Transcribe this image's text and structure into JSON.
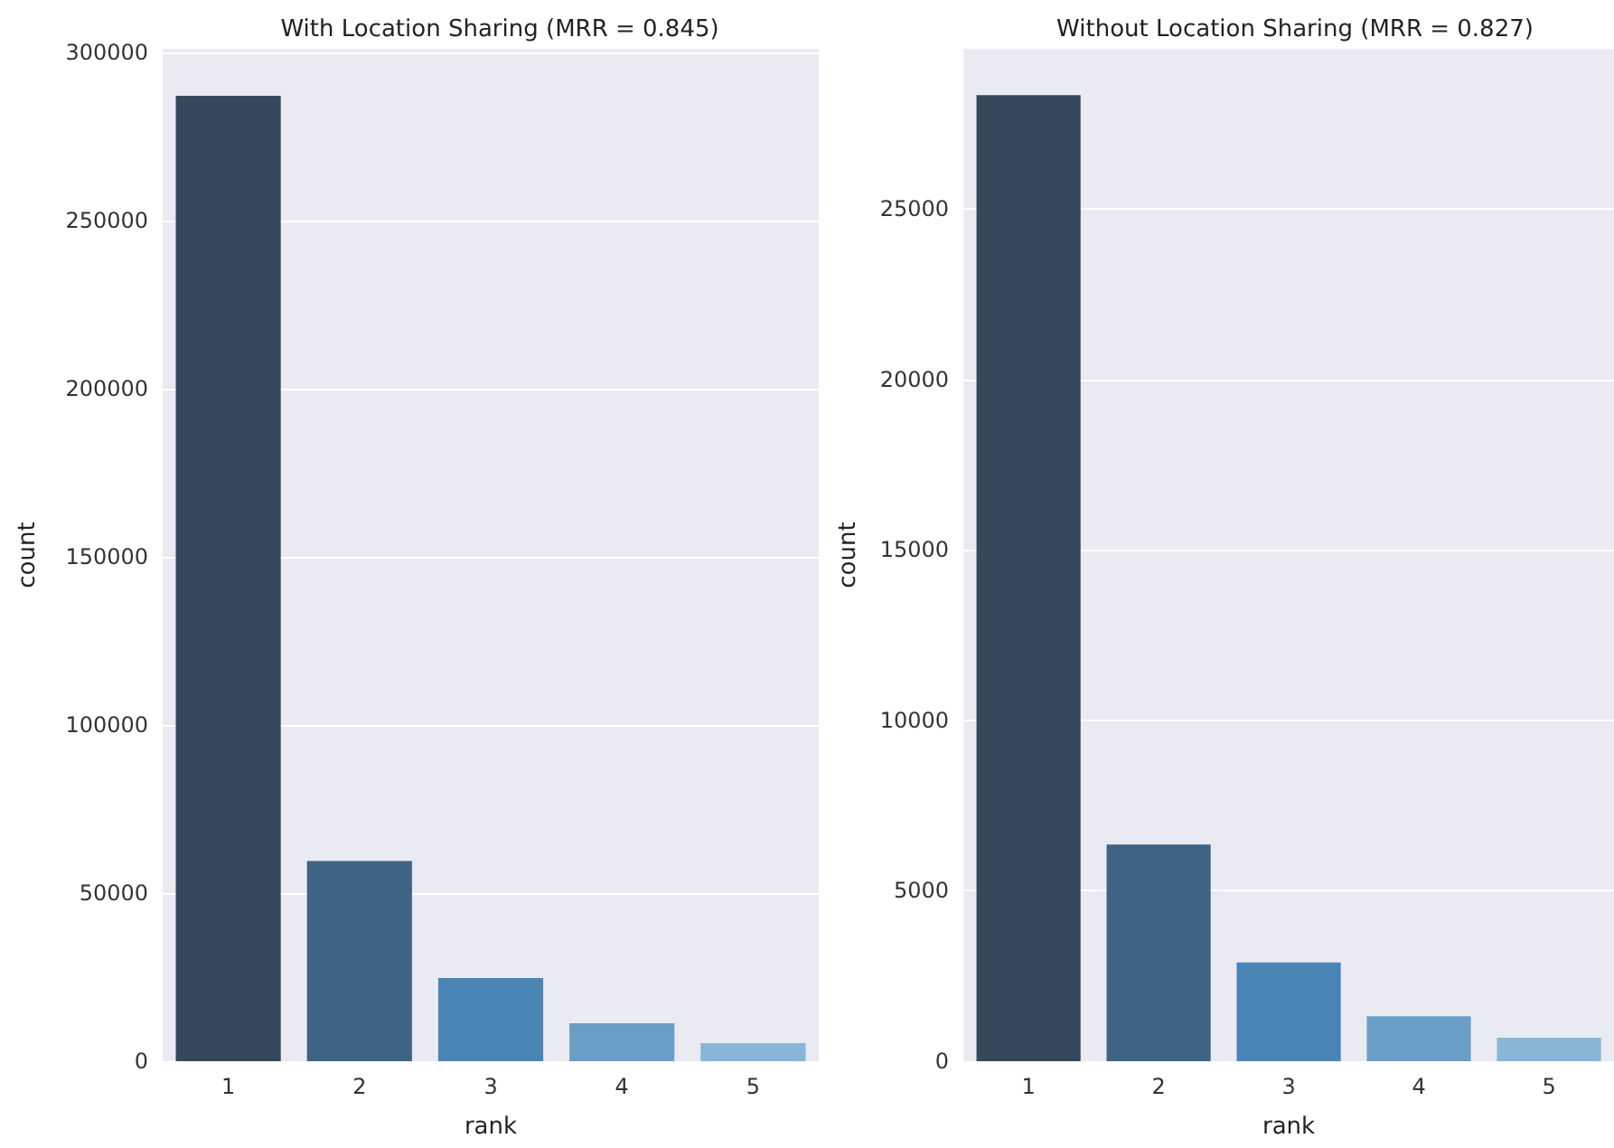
{
  "chart_data": [
    {
      "type": "bar",
      "title": "With Location Sharing (MRR = 0.845)",
      "xlabel": "rank",
      "ylabel": "count",
      "categories": [
        "1",
        "2",
        "3",
        "4",
        "5"
      ],
      "values": [
        287000,
        59500,
        24700,
        11300,
        5400
      ],
      "colors": [
        "#36495a",
        "#3d6484",
        "#4885b5",
        "#6a9ec7",
        "#89b5d6"
      ],
      "ylim": [
        0,
        301000
      ],
      "yticks": [
        0,
        50000,
        100000,
        150000,
        200000,
        250000,
        300000
      ],
      "grid": "y"
    },
    {
      "type": "bar",
      "title": "Without Location Sharing (MRR = 0.827)",
      "xlabel": "rank",
      "ylabel": "count",
      "categories": [
        "1",
        "2",
        "3",
        "4",
        "5"
      ],
      "values": [
        28340,
        6360,
        2900,
        1320,
        690
      ],
      "colors": [
        "#36495a",
        "#3d6484",
        "#4885b5",
        "#6a9ec7",
        "#89b5d6"
      ],
      "ylim": [
        0,
        29700
      ],
      "yticks": [
        0,
        5000,
        10000,
        15000,
        20000,
        25000
      ],
      "grid": "y"
    }
  ]
}
